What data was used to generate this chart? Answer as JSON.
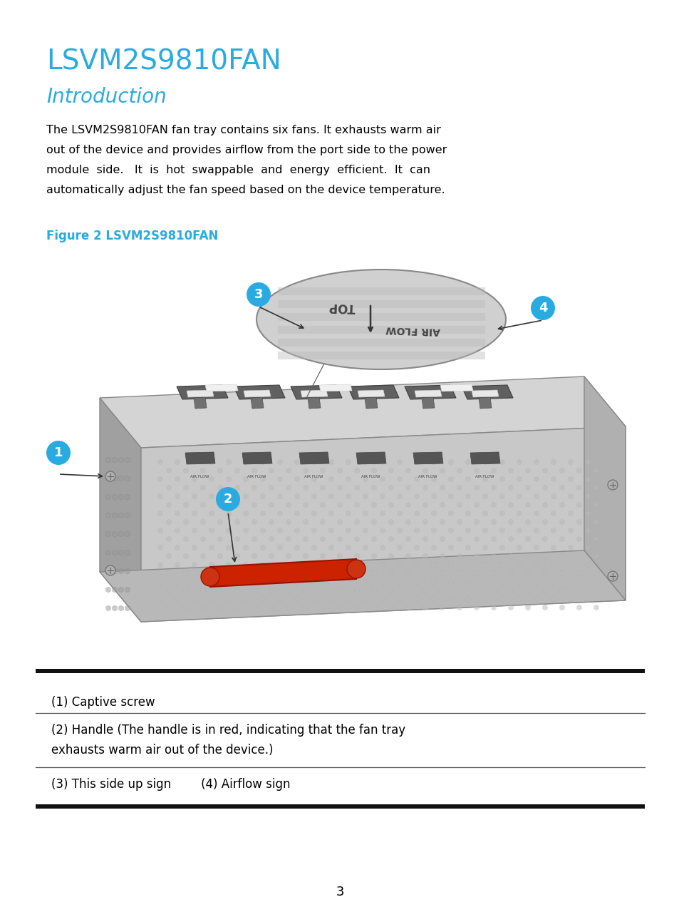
{
  "title": "LSVM2S9810FAN",
  "subtitle": "Introduction",
  "title_color": "#29ABE2",
  "subtitle_color": "#29ABE2",
  "body_lines": [
    "The LSVM2S9810FAN fan tray contains six fans. It exhausts warm air",
    "out of the device and provides airflow from the port side to the power",
    "module  side.   It  is  hot  swappable  and  energy  efficient.  It  can",
    "automatically adjust the fan speed based on the device temperature."
  ],
  "figure_label": "Figure 2 LSVM2S9810FAN",
  "figure_label_color": "#29ABE2",
  "table_row1": "(1) Captive screw",
  "table_row2a": "(2) Handle (The handle is in red, indicating that the fan tray",
  "table_row2b": "exhausts warm air out of the device.)",
  "table_row3": "(3) This side up sign        (4) Airflow sign",
  "page_number": "3",
  "bg_color": "#ffffff",
  "text_color": "#000000",
  "circle_color": "#29ABE2",
  "circle_text_color": "#ffffff"
}
